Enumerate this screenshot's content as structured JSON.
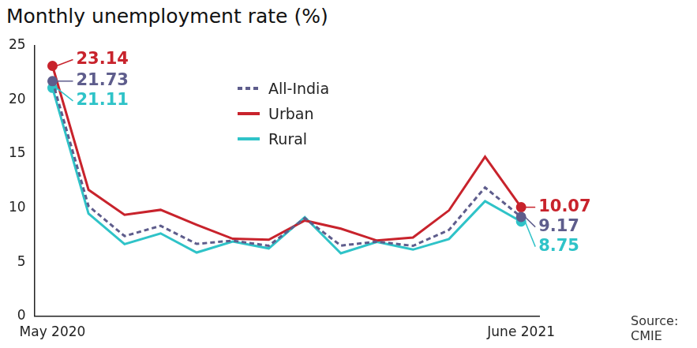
{
  "chart_data": {
    "type": "line",
    "title": "Monthly unemployment rate (%)",
    "categories": [
      "May 2020",
      null,
      null,
      null,
      null,
      null,
      null,
      null,
      null,
      null,
      null,
      null,
      null,
      "June 2021"
    ],
    "series": [
      {
        "name": "All-India",
        "color": "#5e5d8c",
        "line_style": "dashed",
        "values": [
          21.73,
          10.18,
          7.4,
          8.35,
          6.68,
          6.98,
          6.51,
          9.06,
          6.52,
          6.89,
          6.5,
          7.97,
          11.9,
          9.17
        ],
        "value_labels": [
          "21.73",
          null,
          null,
          null,
          null,
          null,
          null,
          null,
          null,
          null,
          null,
          null,
          null,
          "9.17"
        ]
      },
      {
        "name": "Urban",
        "color": "#c8232c",
        "line_style": "solid",
        "values": [
          23.14,
          11.68,
          9.37,
          9.83,
          8.45,
          7.15,
          7.07,
          8.84,
          8.09,
          6.99,
          7.27,
          9.78,
          14.73,
          10.07
        ],
        "value_labels": [
          "23.14",
          null,
          null,
          null,
          null,
          null,
          null,
          null,
          null,
          null,
          null,
          null,
          null,
          "10.07"
        ]
      },
      {
        "name": "Rural",
        "color": "#2fc3c8",
        "line_style": "solid",
        "values": [
          21.11,
          9.49,
          6.66,
          7.65,
          5.88,
          6.9,
          6.26,
          9.15,
          5.81,
          6.86,
          6.15,
          7.13,
          10.63,
          8.75
        ],
        "value_labels": [
          "21.11",
          null,
          null,
          null,
          null,
          null,
          null,
          null,
          null,
          null,
          null,
          null,
          null,
          "8.75"
        ]
      }
    ],
    "ylim": [
      0,
      25
    ],
    "yticks": [
      0,
      5,
      10,
      15,
      20,
      25
    ],
    "grid": false,
    "legend": "top",
    "source": "Source: CMIE"
  }
}
